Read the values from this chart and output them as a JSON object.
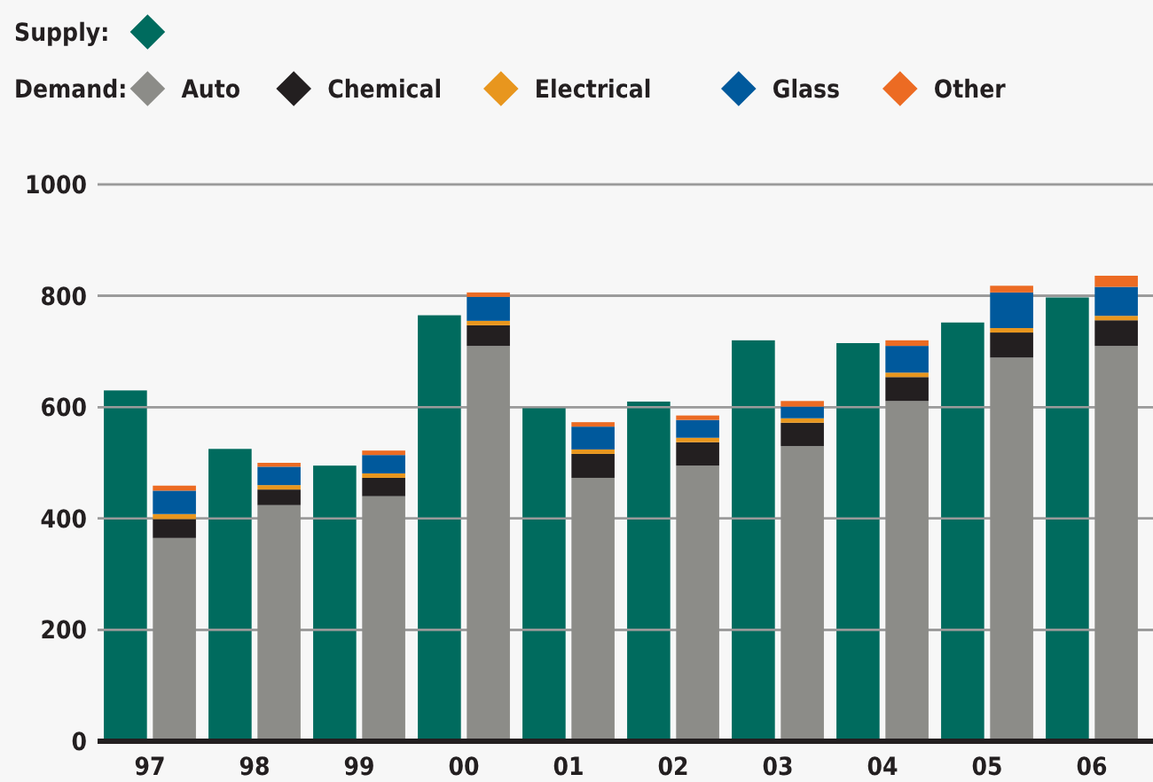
{
  "chart_data": [
    {
      "type": "bar",
      "legend_title": "Supply:",
      "categories": [
        "97",
        "98",
        "99",
        "00",
        "01",
        "02",
        "03",
        "04",
        "05",
        "06"
      ],
      "series": [
        {
          "color": "#006b5e",
          "values": [
            630,
            525,
            495,
            765,
            600,
            610,
            720,
            715,
            752,
            797
          ]
        }
      ],
      "ylim": [
        0,
        1000
      ],
      "yticks": [
        0,
        200,
        400,
        600,
        800,
        1000
      ],
      "grid": "y"
    },
    {
      "type": "bar",
      "legend_title": "Demand:",
      "categories": [
        "97",
        "98",
        "99",
        "00",
        "01",
        "02",
        "03",
        "04",
        "05",
        "06"
      ],
      "series": [
        {
          "name": "Auto",
          "color": "#8c8c88",
          "values": [
            365,
            424,
            440,
            710,
            473,
            495,
            530,
            611,
            689,
            710
          ]
        },
        {
          "name": "Chemical",
          "color": "#231f20",
          "values": [
            34,
            28,
            33,
            37,
            43,
            42,
            42,
            43,
            45,
            46
          ]
        },
        {
          "name": "Electrical",
          "color": "#e8961e",
          "values": [
            9,
            8,
            8,
            8,
            8,
            8,
            8,
            8,
            8,
            8
          ]
        },
        {
          "name": "Glass",
          "color": "#00599c",
          "values": [
            42,
            33,
            33,
            43,
            41,
            32,
            21,
            48,
            64,
            52
          ]
        },
        {
          "name": "Other",
          "color": "#ec6b23",
          "values": [
            9,
            7,
            8,
            8,
            8,
            8,
            10,
            10,
            12,
            20
          ]
        }
      ],
      "stacked": true,
      "ylim": [
        0,
        1000
      ],
      "yticks": [
        0,
        200,
        400,
        600,
        800,
        1000
      ],
      "grid": "y",
      "legend": "top left",
      "tick_labels": false
    }
  ]
}
